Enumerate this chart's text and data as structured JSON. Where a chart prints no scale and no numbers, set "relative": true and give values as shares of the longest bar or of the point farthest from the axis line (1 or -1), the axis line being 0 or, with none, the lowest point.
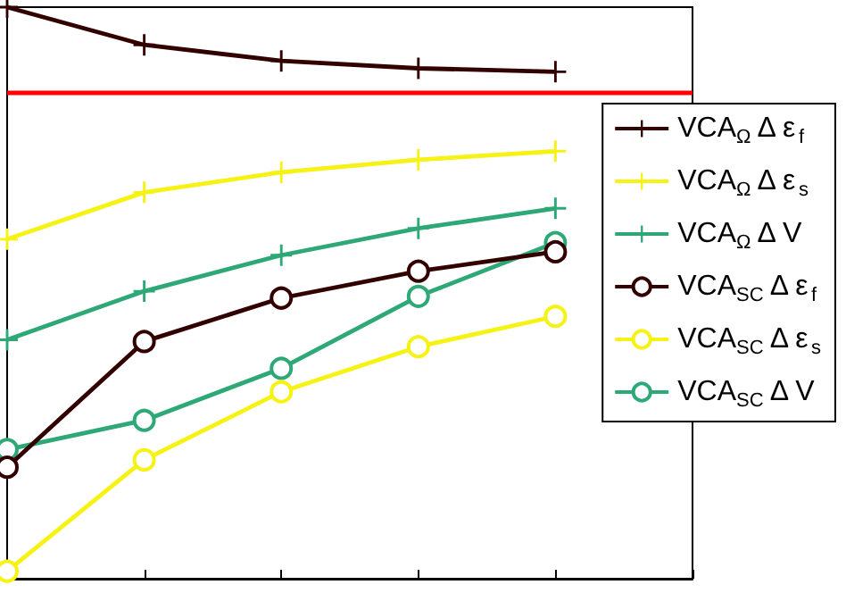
{
  "chart_data": {
    "type": "line",
    "relative": true,
    "categories": [
      null,
      null,
      null,
      null,
      null,
      null
    ],
    "legend": "right",
    "grid": false,
    "series": [
      {
        "name": "VCA$_{Ω}$ Δ ε$_{f}$",
        "color": "#330000",
        "marker": "cross",
        "values": [
          1,
          0.934,
          0.906,
          0.893,
          0.887,
          null
        ]
      },
      {
        "name": "VCA$_{Ω}$ Δ ε$_{s}$",
        "color": "#f5f214",
        "marker": "cross",
        "values": [
          0.594,
          0.676,
          0.711,
          0.733,
          0.748,
          null
        ]
      },
      {
        "name": "VCA$_{Ω}$ Δ V",
        "color": "#2ea876",
        "marker": "cross",
        "values": [
          0.418,
          0.503,
          0.566,
          0.613,
          0.648,
          null
        ]
      },
      {
        "name": "VCA$_{SC}$ Δ ε$_{f}$",
        "color": "#330000",
        "marker": "circle",
        "values": [
          0.195,
          0.415,
          0.491,
          0.538,
          0.572,
          null
        ]
      },
      {
        "name": "VCA$_{SC}$ Δ ε$_{s}$",
        "color": "#f5f214",
        "marker": "circle",
        "values": [
          0.013,
          0.208,
          0.327,
          0.406,
          0.459,
          null
        ]
      },
      {
        "name": "VCA$_{SC}$ Δ V",
        "color": "#2ea876",
        "marker": "circle",
        "values": [
          0.226,
          0.277,
          0.368,
          0.494,
          0.588,
          null
        ]
      }
    ],
    "ref_lines": [
      {
        "axis": "y",
        "value": 0.852,
        "color": "#ff0000"
      }
    ]
  }
}
